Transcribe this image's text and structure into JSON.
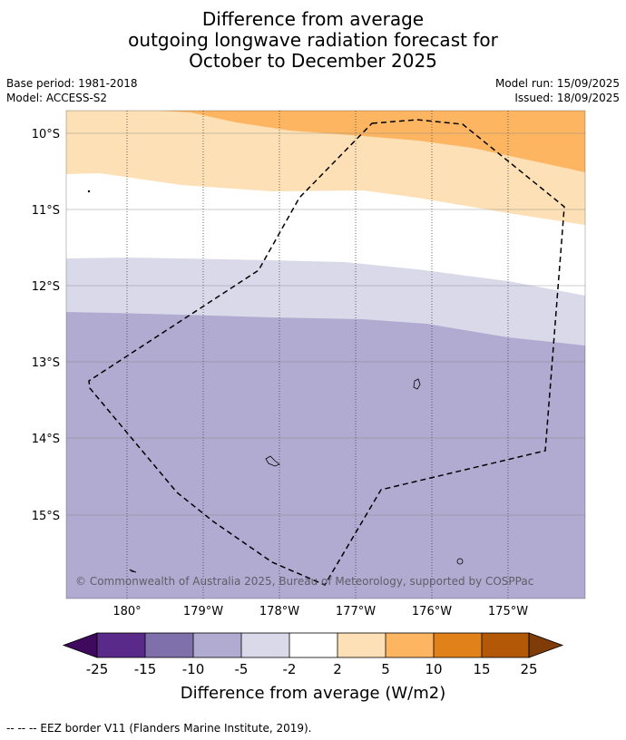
{
  "title": {
    "line1": "Difference from average",
    "line2": "outgoing longwave radiation forecast for",
    "line3": "October to December 2025"
  },
  "meta": {
    "base_period": "Base period: 1981-2018",
    "model": "Model: ACCESS-S2",
    "model_run": "Model run: 15/09/2025",
    "issued": "Issued: 18/09/2025"
  },
  "map": {
    "lat_labels": [
      "10°S",
      "11°S",
      "12°S",
      "13°S",
      "14°S",
      "15°S"
    ],
    "lon_labels": [
      "180°",
      "179°W",
      "178°W",
      "177°W",
      "176°W",
      "175°W"
    ],
    "copyright": "© Commonwealth of Australia 2025, Bureau of Meteorology, supported by COSPPac",
    "colors": {
      "band_orange": "#fdb562",
      "band_light_orange": "#fde0b5",
      "band_white": "#ffffff",
      "band_light_purple": "#d9d9ea",
      "band_purple": "#b1aad1"
    }
  },
  "colorbar": {
    "ticks": [
      "-25",
      "-15",
      "-10",
      "-5",
      "-2",
      "2",
      "5",
      "10",
      "15",
      "25"
    ],
    "colors": [
      "#3f0a5e",
      "#5a2a8a",
      "#7f6fab",
      "#b1aad1",
      "#d9d9ea",
      "#ffffff",
      "#fde0b5",
      "#fdb562",
      "#e0811a",
      "#b35806",
      "#7f3b08"
    ],
    "label": "Difference from average (W/m2)"
  },
  "footer": {
    "eez_legend": "--  --  -- EEZ border V11 (Flanders Marine Institute, 2019)."
  }
}
